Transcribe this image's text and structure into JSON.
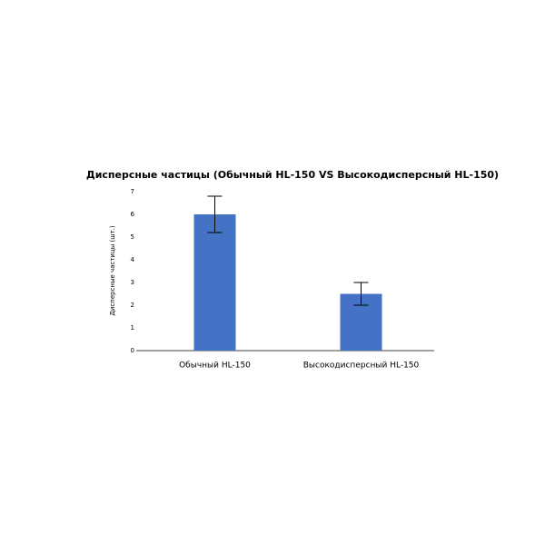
{
  "chart_data": {
    "type": "bar",
    "title": "Дисперсные частицы (Обычный HL-150 VS Высокодисперсный HL-150)",
    "y_label": "Дисперсные частицы (шт.)",
    "categories": [
      "Обычный HL-150",
      "Высокодисперсный HL-150"
    ],
    "values": [
      6,
      2.5
    ],
    "errors": [
      0.8,
      0.5
    ],
    "color": "#4472c4",
    "ylim": [
      0,
      7
    ],
    "yticks": [
      0,
      1,
      2,
      3,
      4,
      5,
      6,
      7
    ],
    "grid": false
  }
}
